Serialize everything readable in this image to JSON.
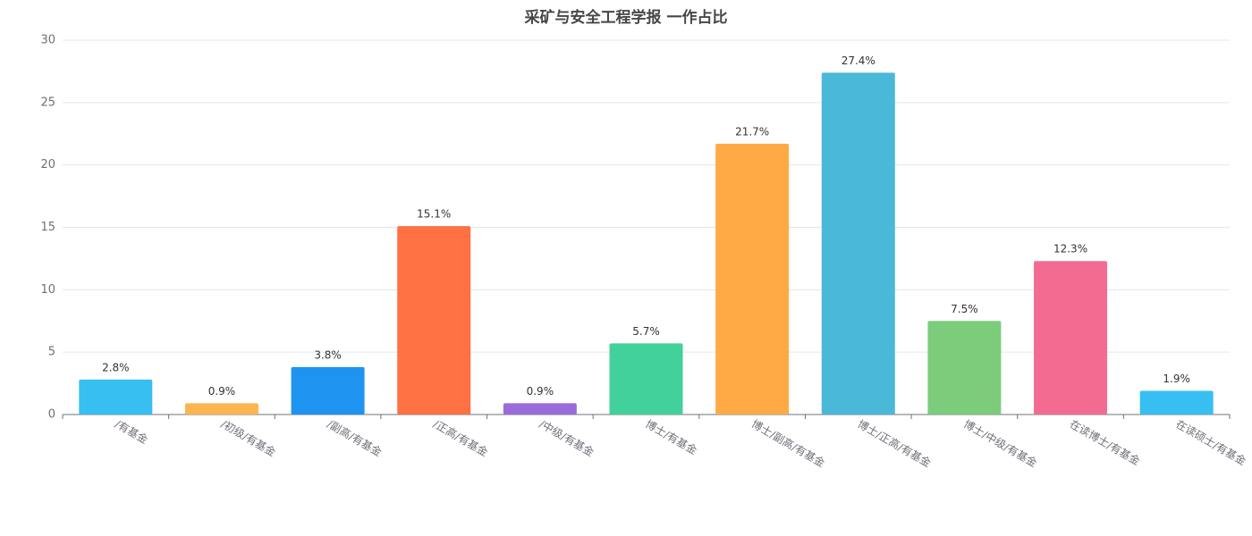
{
  "chart_data": {
    "type": "bar",
    "title": "采矿与安全工程学报 一作占比",
    "categories": [
      "/有基金",
      "/初级/有基金",
      "/副高/有基金",
      "/正高/有基金",
      "/中级/有基金",
      "博士/有基金",
      "博士/副高/有基金",
      "博士/正高/有基金",
      "博士/中级/有基金",
      "在读博士/有基金",
      "在读硕士/有基金"
    ],
    "values": [
      2.8,
      0.9,
      3.8,
      15.1,
      0.9,
      5.7,
      21.7,
      27.4,
      7.5,
      12.3,
      1.9
    ],
    "value_labels": [
      "2.8%",
      "0.9%",
      "3.8%",
      "15.1%",
      "0.9%",
      "5.7%",
      "21.7%",
      "27.4%",
      "7.5%",
      "12.3%",
      "1.9%"
    ],
    "colors": [
      "#37bff2",
      "#fdb54f",
      "#1f93f0",
      "#ff7043",
      "#9c6bdb",
      "#42d19a",
      "#ffaa44",
      "#4ab8d8",
      "#7ccc7c",
      "#f46b92",
      "#37bff2"
    ],
    "ylim": [
      0,
      30
    ],
    "yticks": [
      0,
      5,
      10,
      15,
      20,
      25,
      30
    ],
    "grid": true
  }
}
